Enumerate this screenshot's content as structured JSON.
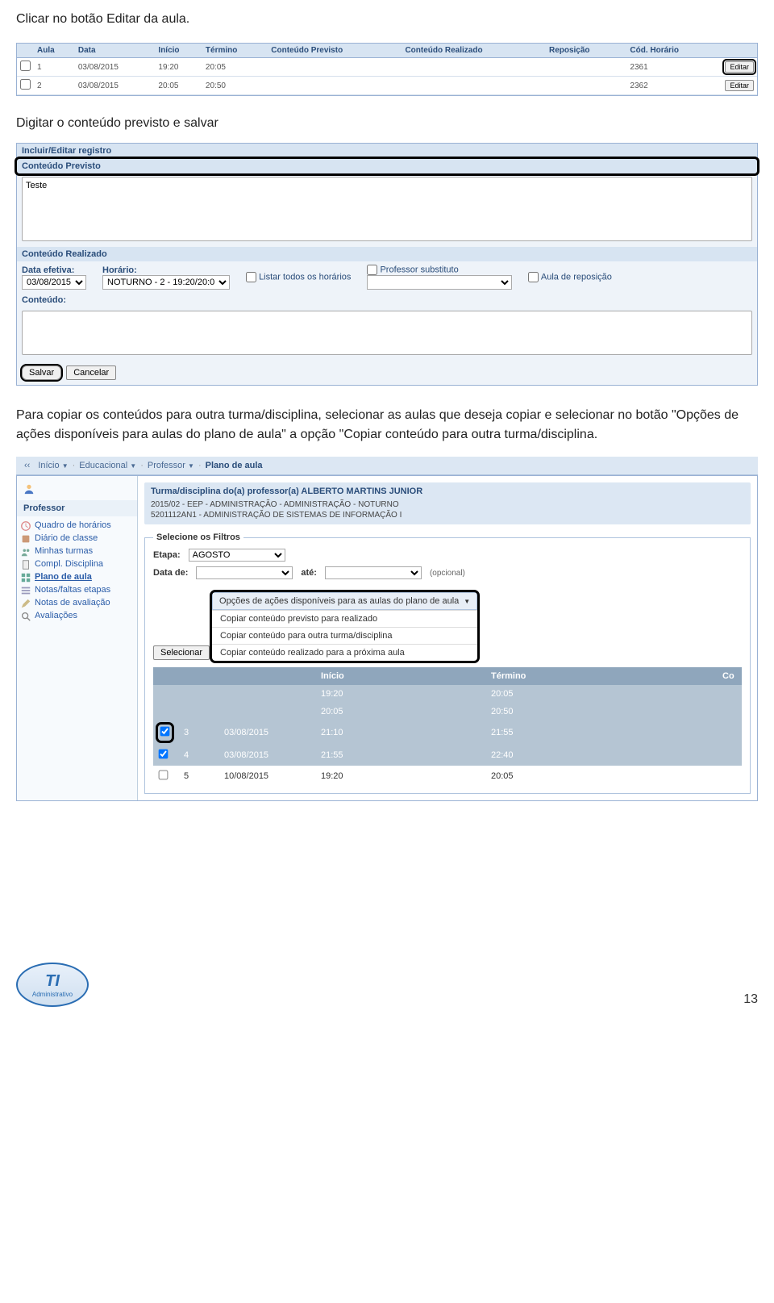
{
  "instructions": {
    "line1": "Clicar no botão Editar da aula.",
    "line2": "Digitar o conteúdo previsto e salvar",
    "line3": "Para copiar os conteúdos para outra turma/disciplina, selecionar as aulas que deseja copiar e selecionar no botão \"Opções de ações disponíveis para aulas do plano de aula\" a opção \"Copiar conteúdo para outra turma/disciplina."
  },
  "aula_table": {
    "headers": [
      "",
      "Aula",
      "Data",
      "Início",
      "Término",
      "Conteúdo Previsto",
      "Conteúdo Realizado",
      "Reposição",
      "Cód. Horário",
      ""
    ],
    "rows": [
      {
        "chk": "",
        "aula": "1",
        "data": "03/08/2015",
        "inicio": "19:20",
        "termino": "20:05",
        "prev": "",
        "real": "",
        "rep": "",
        "cod": "2361",
        "editar": "Editar"
      },
      {
        "chk": "",
        "aula": "2",
        "data": "03/08/2015",
        "inicio": "20:05",
        "termino": "20:50",
        "prev": "",
        "real": "",
        "rep": "",
        "cod": "2362",
        "editar": "Editar"
      }
    ]
  },
  "edit_panel": {
    "title": "Incluir/Editar registro",
    "conteudo_previsto_label": "Conteúdo Previsto",
    "conteudo_previsto_value": "Teste",
    "conteudo_realizado_label": "Conteúdo Realizado",
    "data_efetiva_label": "Data efetiva:",
    "data_efetiva_value": "03/08/2015",
    "horario_label": "Horário:",
    "horario_value": "NOTURNO - 2 - 19:20/20:0",
    "listar_todos_label": "Listar todos os horários",
    "prof_sub_label": "Professor substituto",
    "aula_rep_label": "Aula de reposição",
    "conteudo_label": "Conteúdo:",
    "salvar": "Salvar",
    "cancelar": "Cancelar"
  },
  "breadcrumb": {
    "items": [
      "Início",
      "Educacional",
      "Professor",
      "Plano de aula"
    ]
  },
  "sidebar": {
    "title": "Professor",
    "items": [
      {
        "label": "Quadro de horários",
        "icon": "clock"
      },
      {
        "label": "Diário de classe",
        "icon": "book"
      },
      {
        "label": "Minhas turmas",
        "icon": "people"
      },
      {
        "label": "Compl. Disciplina",
        "icon": "doc"
      },
      {
        "label": "Plano de aula",
        "icon": "grid",
        "active": true
      },
      {
        "label": "Notas/faltas etapas",
        "icon": "list"
      },
      {
        "label": "Notas de avaliação",
        "icon": "pencil"
      },
      {
        "label": "Avaliações",
        "icon": "search"
      }
    ]
  },
  "turma_box": {
    "header": "Turma/disciplina do(a) professor(a) ALBERTO MARTINS JUNIOR",
    "l1": "2015/02 - EEP - ADMINISTRAÇÃO - ADMINISTRAÇÃO - NOTURNO",
    "l2": "5201112AN1 - ADMINISTRAÇÃO DE SISTEMAS DE INFORMAÇÃO I"
  },
  "filters": {
    "legend": "Selecione os Filtros",
    "etapa_label": "Etapa:",
    "etapa_value": "AGOSTO",
    "data_de_label": "Data de:",
    "ate_label": "até:",
    "opcional": "(opcional)",
    "selecionar": "Selecionar"
  },
  "options": {
    "header": "Opções de ações disponíveis para as aulas do plano de aula",
    "items": [
      "Copiar conteúdo previsto para realizado",
      "Copiar conteúdo para outra turma/disciplina",
      "Copiar conteúdo realizado para a próxima aula"
    ]
  },
  "data_table": {
    "headers": {
      "inicio": "Início",
      "termino": "Término",
      "co": "Co"
    },
    "rows": [
      {
        "chk": "hidden",
        "num": "",
        "data": "",
        "inicio": "19:20",
        "termino": "20:05",
        "grey": true
      },
      {
        "chk": "hidden",
        "num": "",
        "data": "",
        "inicio": "20:05",
        "termino": "20:50",
        "grey": true
      },
      {
        "chk": "checked",
        "num": "3",
        "data": "03/08/2015",
        "inicio": "21:10",
        "termino": "21:55",
        "grey": true,
        "hl": true
      },
      {
        "chk": "checked",
        "num": "4",
        "data": "03/08/2015",
        "inicio": "21:55",
        "termino": "22:40",
        "grey": true,
        "hl": false
      },
      {
        "chk": "unchecked",
        "num": "5",
        "data": "10/08/2015",
        "inicio": "19:20",
        "termino": "20:05",
        "grey": false
      }
    ]
  },
  "footer": {
    "logo_main": "TI",
    "logo_sub": "Administrativo",
    "page": "13"
  },
  "colors": {
    "header_bg": "#d7e4f2",
    "border": "#9ab2d4",
    "link": "#2a5ca8",
    "table_header": "#8fa6bc",
    "row_grey": "#b5c5d3"
  }
}
